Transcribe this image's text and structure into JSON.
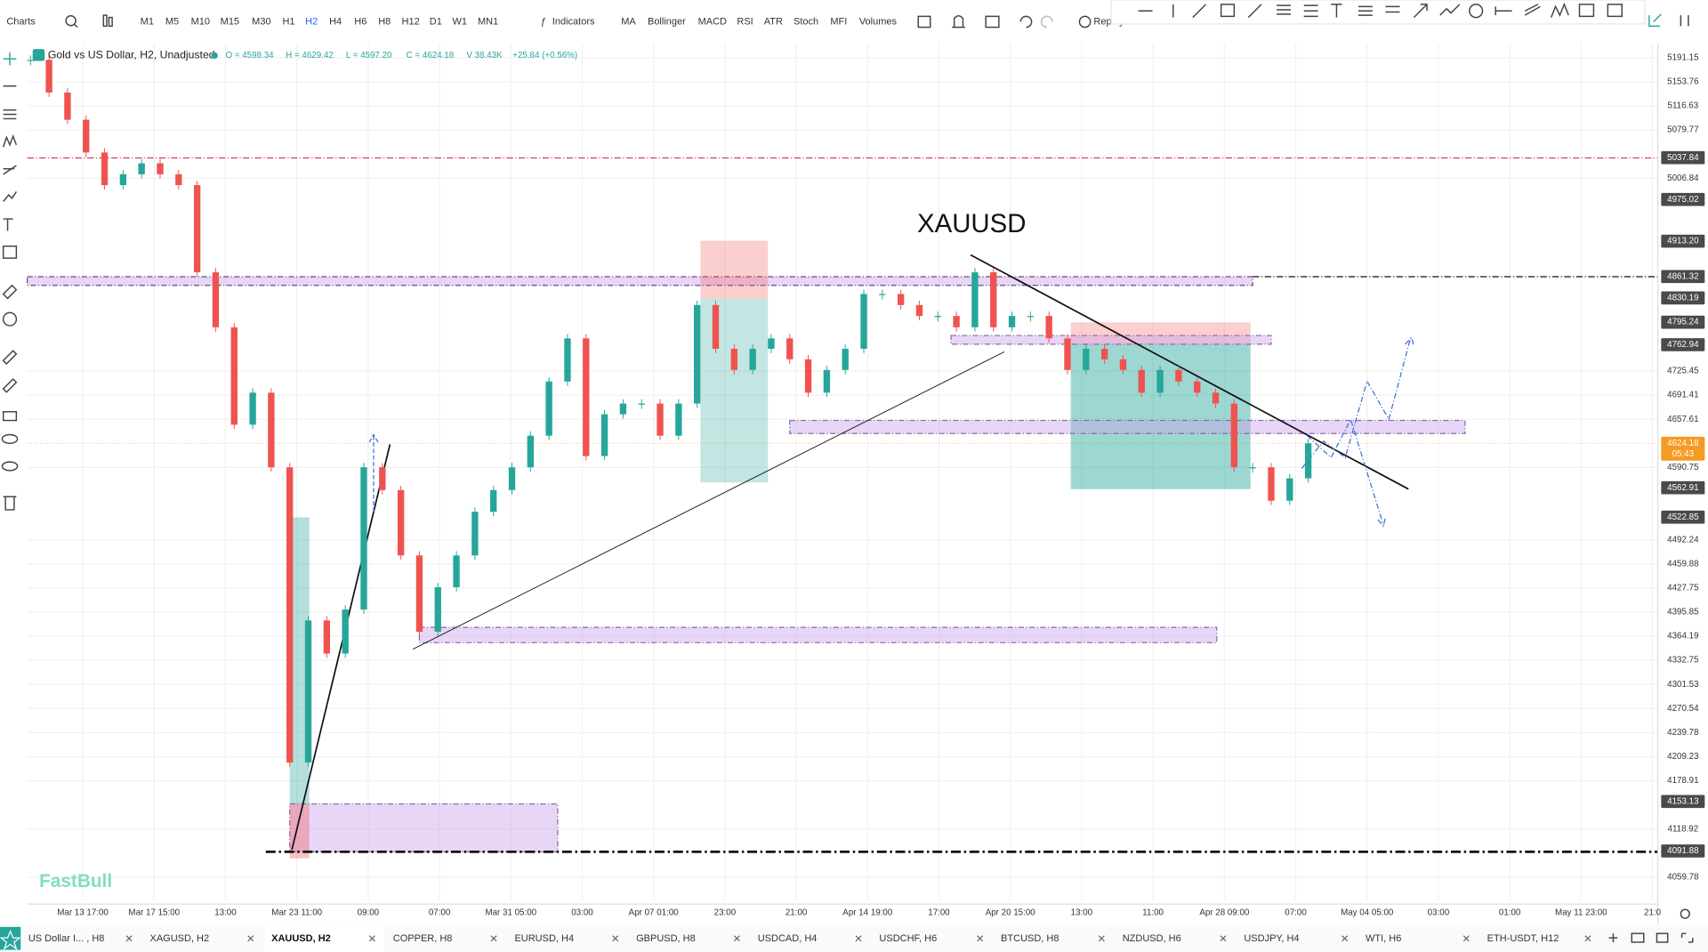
{
  "toolbar": {
    "charts": "Charts",
    "timeframes": [
      "M1",
      "M5",
      "M10",
      "M15",
      "M30",
      "H1",
      "H2",
      "H4",
      "H6",
      "H8",
      "H12",
      "D1",
      "W1",
      "MN1"
    ],
    "active_timeframe": 6,
    "indicators": "Indicators",
    "studies": [
      "MA",
      "Bollinger",
      "MACD",
      "RSI",
      "ATR",
      "Stoch",
      "MFI",
      "Volumes"
    ],
    "replay": "Replay"
  },
  "legend": {
    "symbol": "Gold vs US Dollar, H2, Unadjusted",
    "ohlc": [
      "O = 4598.34",
      "H = 4629.42",
      "L = 4597.20",
      "C = 4624.18",
      "V 38.43K",
      "+25.84 (+0.56%)"
    ]
  },
  "chart_data": {
    "type": "candlestick",
    "annotation": "XAUUSD",
    "watermark": "FastBull",
    "x_labels": [
      "Mar 13 17:00",
      "Mar 17 15:00",
      "13:00",
      "Mar 23 11:00",
      "09:00",
      "07:00",
      "Mar 31 05:00",
      "03:00",
      "Apr 07 01:00",
      "23:00",
      "21:00",
      "Apr 14 19:00",
      "17:00",
      "Apr 20 15:00",
      "13:00",
      "11:00",
      "Apr 28 09:00",
      "07:00",
      "May 04 05:00",
      "03:00",
      "01:00",
      "May 11 23:00",
      "21:0"
    ],
    "closes": [
      5187.8,
      5137.2,
      5095.4,
      5045.7,
      4996.5,
      5012.8,
      5029.3,
      5012.8,
      4996.5,
      4867.5,
      4787.9,
      4650.0,
      4694.9,
      4591.0,
      4201.9,
      4384.9,
      4341.5,
      4399.2,
      4591.0,
      4559.7,
      4471.2,
      4370.0,
      4428.8,
      4471.2,
      4530.1,
      4559.7,
      4591.0,
      4634.7,
      4710.7,
      4772.0,
      4606.5,
      4664.6,
      4679.6,
      4679.6,
      4634.7,
      4679.6,
      4820.0,
      4757.1,
      4727.0,
      4757.1,
      4772.0,
      4742.1,
      4694.9,
      4727.0,
      4757.1,
      4835.9,
      4835.9,
      4820.0,
      4804.2,
      4804.2,
      4787.9,
      4867.5,
      4787.9,
      4804.2,
      4804.2,
      4772.0,
      4727.0,
      4757.1,
      4742.1,
      4727.0,
      4694.9,
      4727.0,
      4710.7,
      4694.9,
      4679.6,
      4591.0,
      4591.0,
      4545.2,
      4575.8,
      4624.18
    ],
    "ylim": [
      4032.5,
      5213.2
    ],
    "log_scale": true,
    "grid": true,
    "yticks": [
      5191.15,
      5153.76,
      5116.63,
      5079.77,
      5006.84,
      4725.45,
      4691.41,
      4657.61,
      4590.75,
      4492.24,
      4459.88,
      4427.75,
      4395.85,
      4364.19,
      4332.75,
      4301.53,
      4270.54,
      4239.78,
      4209.23,
      4178.91,
      4118.92,
      4059.78
    ],
    "up_color": "#26a69a",
    "down_color": "#ef5350",
    "tag_color": "#4a4a4a",
    "price_tags": [
      5037.84,
      4975.02,
      {
        "value": 4913.2,
        "label": "4913.20"
      },
      4861.32,
      4830.19,
      4795.24,
      4762.94,
      4562.91,
      4522.85,
      4153.13,
      4091.88
    ],
    "last_price": {
      "value": 4624.18,
      "countdown": "05:43",
      "color": "#f59a23"
    }
  },
  "tabs": {
    "items": [
      "US Dollar I... , H8",
      "XAGUSD, H2",
      "XAUUSD, H2",
      "COPPER, H8",
      "EURUSD, H4",
      "GBPUSD, H8",
      "USDCAD, H4",
      "USDCHF, H6",
      "BTCUSD, H8",
      "NZDUSD, H6",
      "USDJPY, H4",
      "WTI, H6",
      "ETH-USDT, H12"
    ],
    "active": 2
  }
}
